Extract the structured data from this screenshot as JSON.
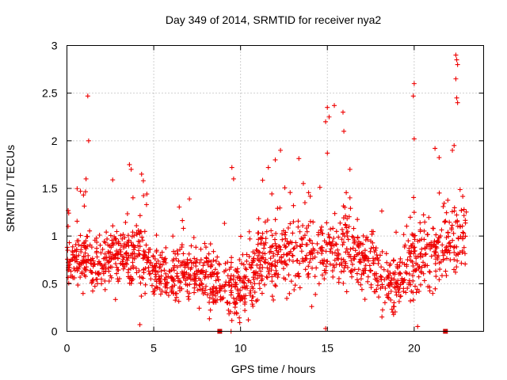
{
  "chart_data": {
    "type": "scatter",
    "title": "Day 349 of 2014, SRMTID for receiver nya2",
    "xlabel": "GPS time / hours",
    "ylabel": "SRMTID / TECUs",
    "xlim": [
      0,
      24
    ],
    "ylim": [
      0,
      3
    ],
    "xticks": [
      "0",
      "5",
      "10",
      "15",
      "20"
    ],
    "xtick_values": [
      0,
      5,
      10,
      15,
      20
    ],
    "yticks": [
      "0",
      "0.5",
      "1",
      "1.5",
      "2",
      "2.5",
      "3"
    ],
    "ytick_values": [
      0,
      0.5,
      1,
      1.5,
      2,
      2.5,
      3
    ],
    "grid": true,
    "marker": "+",
    "series_color": "#ee0000",
    "point_count": 1600,
    "data_range_hours": [
      0,
      23
    ],
    "envelope": [
      {
        "x": 0.0,
        "mean": 0.75,
        "spread": 0.22
      },
      {
        "x": 1.0,
        "mean": 0.78,
        "spread": 0.25
      },
      {
        "x": 2.0,
        "mean": 0.7,
        "spread": 0.22
      },
      {
        "x": 3.0,
        "mean": 0.8,
        "spread": 0.28
      },
      {
        "x": 4.0,
        "mean": 0.85,
        "spread": 0.28
      },
      {
        "x": 5.0,
        "mean": 0.62,
        "spread": 0.2
      },
      {
        "x": 6.0,
        "mean": 0.62,
        "spread": 0.22
      },
      {
        "x": 7.0,
        "mean": 0.6,
        "spread": 0.25
      },
      {
        "x": 8.0,
        "mean": 0.58,
        "spread": 0.25
      },
      {
        "x": 9.0,
        "mean": 0.5,
        "spread": 0.25
      },
      {
        "x": 10.0,
        "mean": 0.4,
        "spread": 0.25
      },
      {
        "x": 11.0,
        "mean": 0.7,
        "spread": 0.3
      },
      {
        "x": 12.0,
        "mean": 0.8,
        "spread": 0.3
      },
      {
        "x": 13.0,
        "mean": 0.8,
        "spread": 0.3
      },
      {
        "x": 14.0,
        "mean": 0.85,
        "spread": 0.32
      },
      {
        "x": 15.0,
        "mean": 0.85,
        "spread": 0.35
      },
      {
        "x": 16.0,
        "mean": 0.9,
        "spread": 0.35
      },
      {
        "x": 17.0,
        "mean": 0.75,
        "spread": 0.3
      },
      {
        "x": 18.0,
        "mean": 0.6,
        "spread": 0.28
      },
      {
        "x": 19.0,
        "mean": 0.45,
        "spread": 0.25
      },
      {
        "x": 20.0,
        "mean": 0.8,
        "spread": 0.35
      },
      {
        "x": 21.0,
        "mean": 0.75,
        "spread": 0.3
      },
      {
        "x": 22.0,
        "mean": 0.95,
        "spread": 0.35
      },
      {
        "x": 23.0,
        "mean": 1.0,
        "spread": 0.3
      }
    ],
    "notable_points": [
      {
        "x": 1.2,
        "y": 2.47
      },
      {
        "x": 1.25,
        "y": 2.0
      },
      {
        "x": 1.1,
        "y": 1.6
      },
      {
        "x": 3.6,
        "y": 1.75
      },
      {
        "x": 3.7,
        "y": 1.7
      },
      {
        "x": 4.3,
        "y": 1.65
      },
      {
        "x": 4.4,
        "y": 1.58
      },
      {
        "x": 4.2,
        "y": 0.07
      },
      {
        "x": 9.5,
        "y": 1.72
      },
      {
        "x": 9.6,
        "y": 1.6
      },
      {
        "x": 11.6,
        "y": 1.72
      },
      {
        "x": 12.0,
        "y": 1.8
      },
      {
        "x": 12.3,
        "y": 1.9
      },
      {
        "x": 15.0,
        "y": 2.35
      },
      {
        "x": 15.1,
        "y": 2.25
      },
      {
        "x": 14.9,
        "y": 2.2
      },
      {
        "x": 15.4,
        "y": 2.37
      },
      {
        "x": 15.9,
        "y": 2.3
      },
      {
        "x": 15.95,
        "y": 2.1
      },
      {
        "x": 15.0,
        "y": 1.87
      },
      {
        "x": 16.3,
        "y": 1.7
      },
      {
        "x": 14.9,
        "y": 0.03
      },
      {
        "x": 20.0,
        "y": 2.6
      },
      {
        "x": 19.95,
        "y": 2.47
      },
      {
        "x": 20.0,
        "y": 2.02
      },
      {
        "x": 21.2,
        "y": 1.92
      },
      {
        "x": 20.2,
        "y": 0.05
      },
      {
        "x": 22.4,
        "y": 2.9
      },
      {
        "x": 22.45,
        "y": 2.85
      },
      {
        "x": 22.5,
        "y": 2.8
      },
      {
        "x": 22.4,
        "y": 2.65
      },
      {
        "x": 22.45,
        "y": 2.45
      },
      {
        "x": 22.5,
        "y": 2.4
      },
      {
        "x": 22.3,
        "y": 1.95
      },
      {
        "x": 22.2,
        "y": 1.9
      }
    ],
    "square_markers": [
      {
        "x": 8.8,
        "y": 0.0
      },
      {
        "x": 21.8,
        "y": 0.0
      }
    ]
  }
}
